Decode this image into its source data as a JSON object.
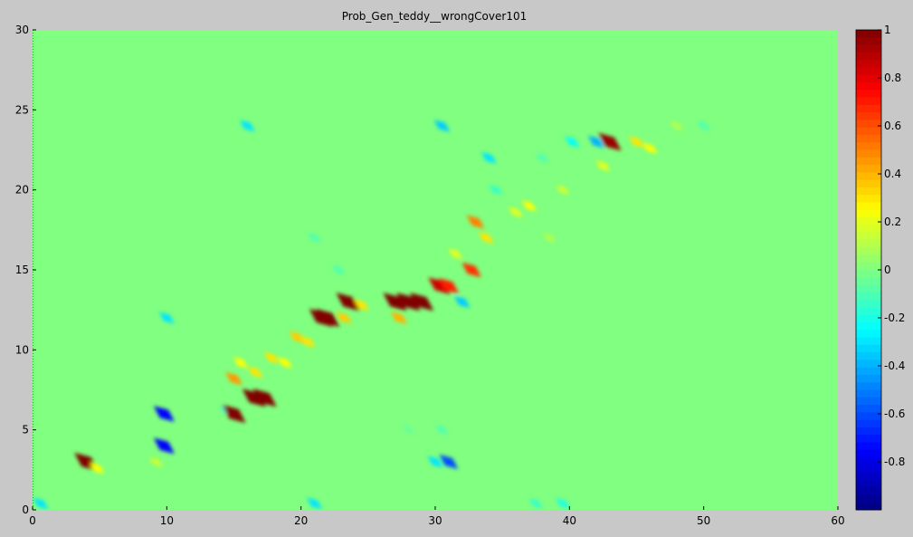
{
  "window": {
    "background": "#c8c8c8"
  },
  "chart_data": {
    "type": "heatmap",
    "title": "Prob_Gen_teddy__wrongCover101",
    "xlabel": "",
    "ylabel": "",
    "xlim": [
      0,
      60
    ],
    "ylim": [
      0,
      30
    ],
    "x_ticks": [
      "0",
      "10",
      "20",
      "30",
      "40",
      "50",
      "60"
    ],
    "y_ticks": [
      "0",
      "5",
      "10",
      "15",
      "20",
      "25",
      "30"
    ],
    "colorbar": {
      "colormap": "jet",
      "range": [
        -1,
        1
      ],
      "ticks": [
        "1",
        "0.8",
        "0.6",
        "0.4",
        "0.2",
        "0",
        "-0.2",
        "-0.4",
        "-0.6",
        "-0.8"
      ],
      "tick_values": [
        1,
        0.8,
        0.6,
        0.4,
        0.2,
        0,
        -0.2,
        -0.4,
        -0.6,
        -0.8
      ]
    },
    "background_value": 0,
    "blobs": [
      {
        "x": 0.6,
        "y": 0.4,
        "v": -0.3
      },
      {
        "x": 4.0,
        "y": 3.0,
        "v": 1.0
      },
      {
        "x": 4.8,
        "y": 2.6,
        "v": 0.25
      },
      {
        "x": 9.8,
        "y": 6.0,
        "v": -0.75
      },
      {
        "x": 9.8,
        "y": 4.0,
        "v": -0.75
      },
      {
        "x": 10.0,
        "y": 12.0,
        "v": -0.3
      },
      {
        "x": 9.2,
        "y": 3.0,
        "v": 0.15
      },
      {
        "x": 14.5,
        "y": 6.2,
        "v": -0.2
      },
      {
        "x": 15.0,
        "y": 6.0,
        "v": 1.0
      },
      {
        "x": 15.0,
        "y": 8.2,
        "v": 0.45
      },
      {
        "x": 15.5,
        "y": 9.2,
        "v": 0.25
      },
      {
        "x": 16.0,
        "y": 24.0,
        "v": -0.3
      },
      {
        "x": 16.5,
        "y": 7.0,
        "v": 1.0
      },
      {
        "x": 17.3,
        "y": 7.0,
        "v": 1.0
      },
      {
        "x": 16.6,
        "y": 8.6,
        "v": 0.3
      },
      {
        "x": 17.8,
        "y": 9.5,
        "v": 0.3
      },
      {
        "x": 18.8,
        "y": 9.2,
        "v": 0.25
      },
      {
        "x": 19.7,
        "y": 10.8,
        "v": 0.35
      },
      {
        "x": 20.5,
        "y": 10.5,
        "v": 0.3
      },
      {
        "x": 21.5,
        "y": 12.0,
        "v": 1.0
      },
      {
        "x": 22.0,
        "y": 12.0,
        "v": 1.0
      },
      {
        "x": 21.0,
        "y": 17.0,
        "v": -0.1
      },
      {
        "x": 21.0,
        "y": 0.4,
        "v": -0.3
      },
      {
        "x": 23.5,
        "y": 13.0,
        "v": 1.0
      },
      {
        "x": 23.2,
        "y": 12.0,
        "v": 0.35
      },
      {
        "x": 24.5,
        "y": 12.8,
        "v": 0.3
      },
      {
        "x": 27.0,
        "y": 13.0,
        "v": 1.0
      },
      {
        "x": 28.0,
        "y": 13.0,
        "v": 1.0
      },
      {
        "x": 29.0,
        "y": 13.0,
        "v": 1.0
      },
      {
        "x": 27.3,
        "y": 12.0,
        "v": 0.4
      },
      {
        "x": 30.0,
        "y": 3.0,
        "v": -0.3
      },
      {
        "x": 31.0,
        "y": 3.0,
        "v": -0.6
      },
      {
        "x": 30.5,
        "y": 24.0,
        "v": -0.35
      },
      {
        "x": 30.3,
        "y": 14.0,
        "v": 0.85
      },
      {
        "x": 31.0,
        "y": 14.0,
        "v": 0.7
      },
      {
        "x": 32.0,
        "y": 13.0,
        "v": -0.35
      },
      {
        "x": 31.5,
        "y": 16.0,
        "v": 0.2
      },
      {
        "x": 32.7,
        "y": 15.0,
        "v": 0.65
      },
      {
        "x": 33.0,
        "y": 18.0,
        "v": 0.5
      },
      {
        "x": 33.8,
        "y": 17.0,
        "v": 0.3
      },
      {
        "x": 34.0,
        "y": 22.0,
        "v": -0.3
      },
      {
        "x": 34.5,
        "y": 20.0,
        "v": -0.15
      },
      {
        "x": 36.0,
        "y": 18.6,
        "v": 0.2
      },
      {
        "x": 37.0,
        "y": 19.0,
        "v": 0.25
      },
      {
        "x": 37.5,
        "y": 0.4,
        "v": -0.15
      },
      {
        "x": 38.0,
        "y": 22.0,
        "v": -0.1
      },
      {
        "x": 38.5,
        "y": 17.0,
        "v": 0.1
      },
      {
        "x": 39.5,
        "y": 20.0,
        "v": 0.15
      },
      {
        "x": 39.5,
        "y": 0.4,
        "v": -0.2
      },
      {
        "x": 40.2,
        "y": 23.0,
        "v": -0.25
      },
      {
        "x": 42.0,
        "y": 23.0,
        "v": -0.4
      },
      {
        "x": 43.0,
        "y": 23.0,
        "v": 0.95
      },
      {
        "x": 42.5,
        "y": 21.5,
        "v": 0.2
      },
      {
        "x": 45.0,
        "y": 23.0,
        "v": 0.3
      },
      {
        "x": 46.0,
        "y": 22.6,
        "v": 0.25
      },
      {
        "x": 48.0,
        "y": 24.0,
        "v": 0.1
      },
      {
        "x": 50.0,
        "y": 24.0,
        "v": -0.1
      },
      {
        "x": 30.5,
        "y": 5.0,
        "v": -0.1
      },
      {
        "x": 28.0,
        "y": 5.0,
        "v": -0.05
      },
      {
        "x": 22.8,
        "y": 15.0,
        "v": -0.1
      }
    ]
  }
}
